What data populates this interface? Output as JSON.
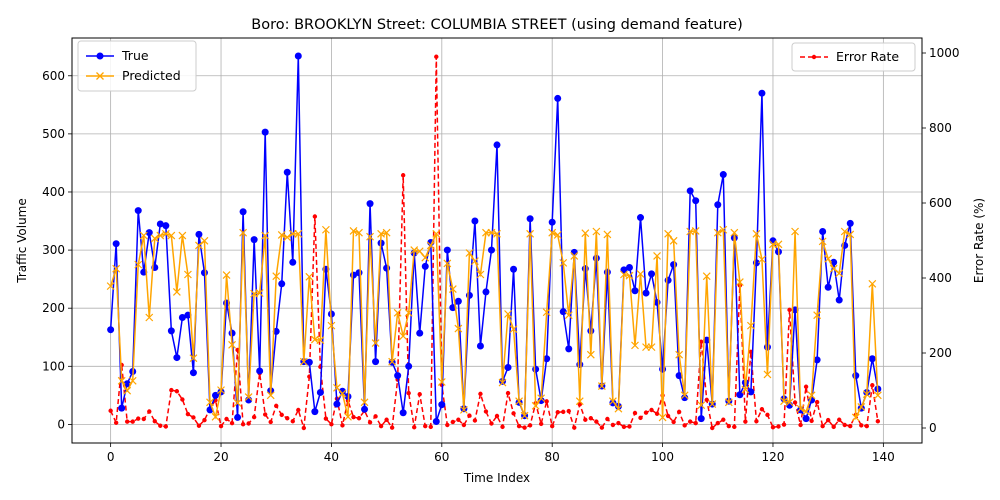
{
  "chart_data": {
    "type": "line",
    "title": "Boro: BROOKLYN Street: COLUMBIA STREET (using demand feature)",
    "xlabel": "Time Index",
    "ylabel": "Traffic Volume",
    "y2label": "Error Rate (%)",
    "xlim": [
      -7,
      147
    ],
    "ylim": [
      -32,
      665
    ],
    "y2lim": [
      -40,
      1040
    ],
    "x_ticks": [
      0,
      20,
      40,
      60,
      80,
      100,
      120,
      140
    ],
    "y_ticks": [
      0,
      100,
      200,
      300,
      400,
      500,
      600
    ],
    "y2_ticks": [
      0,
      200,
      400,
      600,
      800,
      1000
    ],
    "grid": true,
    "legend_left_position": "upper-left",
    "legend_right_position": "upper-right",
    "series": [
      {
        "name": "True",
        "axis": "left",
        "color": "#0000ff",
        "marker": "circle",
        "values": [
          163,
          311,
          28,
          70,
          91,
          368,
          262,
          330,
          270,
          345,
          342,
          161,
          115,
          184,
          188,
          89,
          327,
          261,
          25,
          50,
          56,
          209,
          157,
          12,
          366,
          42,
          318,
          92,
          503,
          58,
          160,
          242,
          434,
          279,
          634,
          108,
          107,
          22,
          55,
          267,
          190,
          35,
          57,
          48,
          257,
          261,
          26,
          380,
          108,
          312,
          269,
          107,
          84,
          20,
          100,
          295,
          157,
          272,
          313,
          5,
          34,
          300,
          201,
          212,
          27,
          222,
          350,
          135,
          228,
          300,
          481,
          74,
          98,
          267,
          38,
          15,
          354,
          95,
          41,
          113,
          348,
          561,
          194,
          130,
          296,
          103,
          268,
          161,
          286,
          66,
          262,
          37,
          31,
          266,
          270,
          230,
          356,
          226,
          259,
          210,
          95,
          248,
          275,
          84,
          46,
          402,
          385,
          10,
          145,
          35,
          378,
          430,
          40,
          321,
          51,
          72,
          56,
          278,
          570,
          133,
          316,
          297,
          44,
          33,
          197,
          25,
          10,
          42,
          111,
          332,
          236,
          279,
          214,
          308,
          346,
          84,
          28,
          55,
          113,
          61
        ]
      },
      {
        "name": "Predicted",
        "axis": "left",
        "color": "#ffa500",
        "marker": "x",
        "values": [
          238,
          268,
          75,
          58,
          75,
          275,
          325,
          184,
          320,
          325,
          328,
          325,
          228,
          325,
          258,
          114,
          308,
          316,
          38,
          13,
          59,
          257,
          137,
          37,
          330,
          47,
          225,
          226,
          325,
          50,
          255,
          326,
          322,
          328,
          328,
          108,
          254,
          146,
          145,
          335,
          170,
          63,
          53,
          13,
          333,
          330,
          38,
          323,
          140,
          328,
          330,
          108,
          192,
          152,
          192,
          300,
          298,
          287,
          308,
          328,
          73,
          277,
          233,
          165,
          25,
          295,
          281,
          258,
          330,
          330,
          328,
          72,
          190,
          164,
          40,
          15,
          328,
          32,
          45,
          193,
          330,
          326,
          278,
          188,
          290,
          40,
          329,
          120,
          332,
          66,
          327,
          40,
          27,
          258,
          256,
          136,
          259,
          133,
          133,
          290,
          12,
          328,
          316,
          120,
          50,
          332,
          333,
          33,
          255,
          35,
          330,
          335,
          38,
          330,
          245,
          60,
          170,
          328,
          284,
          86,
          310,
          310,
          40,
          38,
          332,
          27,
          22,
          50,
          188,
          315,
          285,
          268,
          260,
          332,
          327,
          12,
          30,
          52,
          242,
          50
        ]
      },
      {
        "name": "Error Rate",
        "axis": "right",
        "color": "#ff0000",
        "marker": "dot",
        "dashed": true,
        "values": [
          46,
          14,
          168,
          17,
          17,
          25,
          24,
          44,
          18,
          6,
          4,
          101,
          98,
          76,
          37,
          28,
          6,
          21,
          52,
          74,
          5,
          24,
          13,
          208,
          10,
          12,
          29,
          146,
          36,
          16,
          59,
          35,
          26,
          18,
          48,
          0,
          137,
          564,
          163,
          25,
          10,
          78,
          7,
          73,
          29,
          26,
          46,
          15,
          31,
          5,
          22,
          1,
          129,
          674,
          93,
          2,
          90,
          5,
          3,
          990,
          115,
          8,
          16,
          22,
          8,
          33,
          20,
          91,
          44,
          12,
          32,
          3,
          93,
          39,
          5,
          1,
          7,
          66,
          11,
          71,
          5,
          42,
          43,
          45,
          1,
          63,
          22,
          26,
          17,
          1,
          24,
          8,
          13,
          3,
          4,
          40,
          27,
          41,
          48,
          38,
          87,
          32,
          16,
          43,
          7,
          17,
          13,
          230,
          75,
          0,
          13,
          22,
          5,
          3,
          380,
          17,
          203,
          18,
          50,
          35,
          2,
          4,
          9,
          315,
          68,
          8,
          110,
          19,
          69,
          5,
          21,
          3,
          22,
          8,
          5,
          35,
          7,
          5,
          114,
          18
        ]
      }
    ]
  }
}
